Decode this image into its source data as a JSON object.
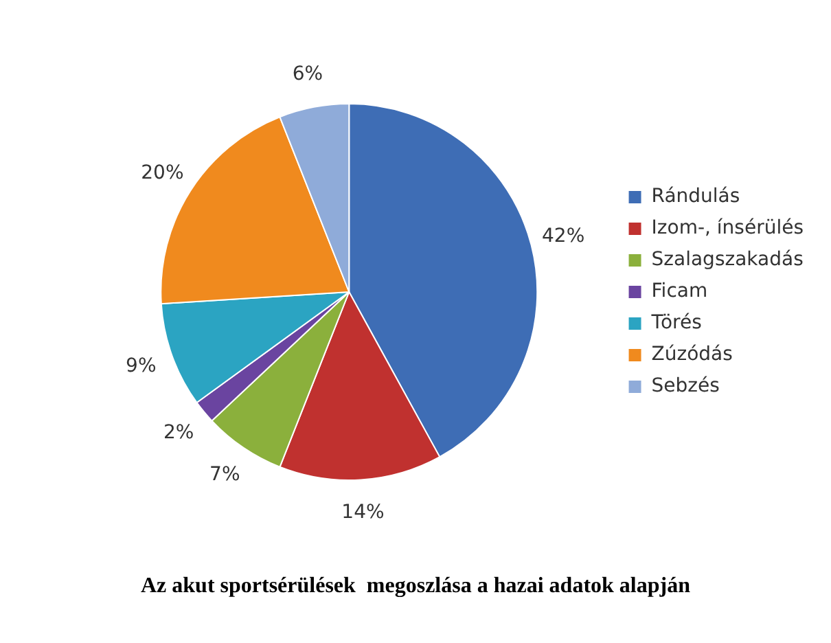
{
  "chart_data": {
    "type": "pie",
    "title": "Az akut sportsérülések  megoszlása a hazai adatok alapján",
    "categories": [
      "Rándulás",
      "Izom-, ínsérülés",
      "Szalagszakadás",
      "Ficam",
      "Törés",
      "Zúzódás",
      "Sebzés"
    ],
    "values": [
      42,
      14,
      7,
      2,
      9,
      20,
      6
    ],
    "value_labels": [
      "42%",
      "14%",
      "7%",
      "2%",
      "9%",
      "20%",
      "6%"
    ],
    "colors": [
      "#3e6db5",
      "#c0312f",
      "#8bb03c",
      "#6a44a0",
      "#2ba4c2",
      "#f08a1e",
      "#8fabd9"
    ],
    "legend": "right"
  }
}
